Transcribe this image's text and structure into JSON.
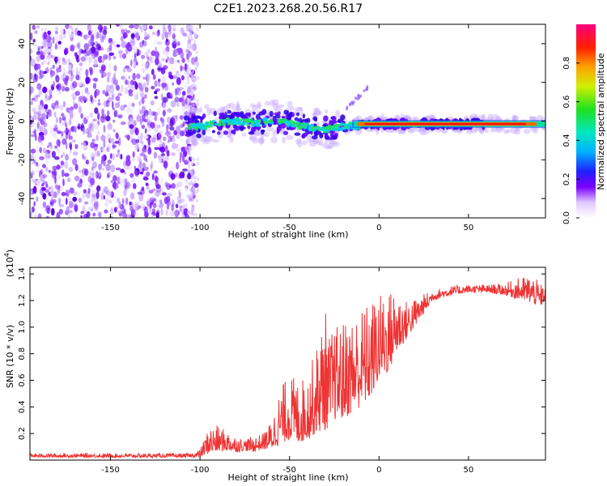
{
  "title": "C2E1.2023.268.20.56.R17",
  "chart_data": [
    {
      "type": "heatmap",
      "name": "spectrogram",
      "xlabel": "Height of straight line (km)",
      "ylabel": "Frequency (Hz)",
      "xlim": [
        -195,
        93
      ],
      "ylim": [
        -50,
        50
      ],
      "xticks": [
        -150,
        -100,
        -50,
        0,
        50
      ],
      "xtick_labels": [
        "-150",
        "-100",
        "-50",
        "0",
        "50"
      ],
      "yticks": [
        -40,
        -20,
        0,
        20,
        40
      ],
      "ytick_labels": [
        "-40",
        "-20",
        "0",
        "20",
        "40"
      ],
      "trace": {
        "x": [
          -108,
          -100,
          -90,
          -80,
          -70,
          -60,
          -50,
          -40,
          -30,
          -20,
          -10,
          0,
          10,
          20,
          40,
          60,
          80,
          93
        ],
        "y": [
          -2,
          -3,
          -1,
          0,
          -1,
          0,
          -1,
          -3,
          -4,
          -3,
          -2,
          -1.5,
          -1.5,
          -1.5,
          -1.5,
          -1.5,
          -1.5,
          -1.5
        ]
      },
      "noise_region": [
        -195,
        -105
      ],
      "colorbar": {
        "label": "Normalized spectral amplitude",
        "range": [
          0,
          1
        ],
        "ticks": [
          0.0,
          0.2,
          0.4,
          0.6,
          0.8
        ],
        "tick_labels": [
          "0.0",
          "0.2",
          "0.4",
          "0.6",
          "0.8"
        ]
      }
    },
    {
      "type": "line",
      "name": "snr",
      "xlabel": "Height of straight line (km)",
      "ylabel": "SNR (10 * v/v)",
      "multiplier_label": "(x10",
      "multiplier_exp": "4",
      "xlim": [
        -195,
        93
      ],
      "ylim": [
        0,
        1.45
      ],
      "xticks": [
        -150,
        -100,
        -50,
        0,
        50
      ],
      "xtick_labels": [
        "-150",
        "-100",
        "-50",
        "0",
        "50"
      ],
      "yticks": [
        0.2,
        0.4,
        0.6,
        0.8,
        1.0,
        1.2,
        1.4
      ],
      "ytick_labels": [
        "0.2",
        "0.4",
        "0.6",
        "0.8",
        "1.0",
        "1.2",
        "1.4"
      ],
      "color": "#ee3333",
      "envelope": {
        "x": [
          -195,
          -105,
          -100,
          -95,
          -90,
          -85,
          -80,
          -75,
          -70,
          -65,
          -60,
          -55,
          -50,
          -45,
          -40,
          -35,
          -30,
          -28,
          -25,
          -20,
          -15,
          -10,
          -5,
          0,
          5,
          10,
          15,
          20,
          25,
          30,
          40,
          50,
          60,
          70,
          80,
          85,
          90,
          93
        ],
        "lo": [
          0.02,
          0.02,
          0.02,
          0.05,
          0.06,
          0.07,
          0.06,
          0.07,
          0.06,
          0.08,
          0.08,
          0.12,
          0.15,
          0.12,
          0.15,
          0.2,
          0.22,
          0.25,
          0.3,
          0.3,
          0.35,
          0.4,
          0.45,
          0.6,
          0.65,
          0.8,
          0.9,
          1.0,
          1.1,
          1.2,
          1.24,
          1.26,
          1.26,
          1.24,
          1.2,
          1.18,
          1.15,
          1.2
        ],
        "hi": [
          0.05,
          0.05,
          0.08,
          0.25,
          0.26,
          0.22,
          0.18,
          0.16,
          0.18,
          0.2,
          0.3,
          0.55,
          0.65,
          0.6,
          0.65,
          0.85,
          1.15,
          0.95,
          1.0,
          1.05,
          1.1,
          1.15,
          1.2,
          1.25,
          1.28,
          1.3,
          1.2,
          1.22,
          1.25,
          1.28,
          1.31,
          1.32,
          1.32,
          1.33,
          1.38,
          1.4,
          1.33,
          1.3
        ]
      }
    }
  ]
}
